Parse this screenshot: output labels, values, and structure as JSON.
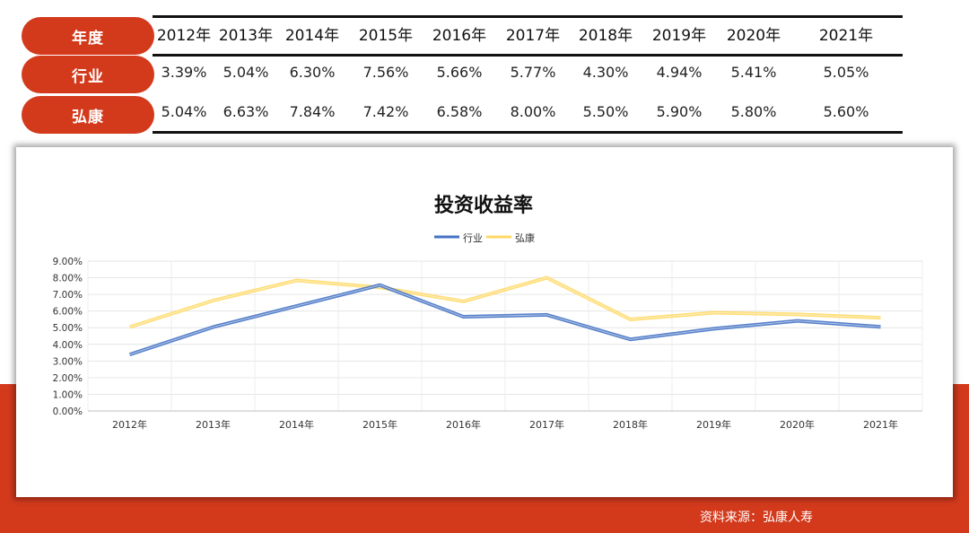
{
  "table": {
    "row_labels": [
      "年度",
      "行业",
      "弘康"
    ],
    "years": [
      "2012年",
      "2013年",
      "2014年",
      "2015年",
      "2016年",
      "2017年",
      "2018年",
      "2019年",
      "2020年",
      "2021年"
    ],
    "industry": [
      "3.39%",
      "5.04%",
      "6.30%",
      "7.56%",
      "5.66%",
      "5.77%",
      "4.30%",
      "4.94%",
      "5.41%",
      "5.05%"
    ],
    "hongkang": [
      "5.04%",
      "6.63%",
      "7.84%",
      "7.42%",
      "6.58%",
      "8.00%",
      "5.50%",
      "5.90%",
      "5.80%",
      "5.60%"
    ]
  },
  "chart_data": {
    "type": "line",
    "title": "投资收益率",
    "categories": [
      "2012年",
      "2013年",
      "2014年",
      "2015年",
      "2016年",
      "2017年",
      "2018年",
      "2019年",
      "2020年",
      "2021年"
    ],
    "series": [
      {
        "name": "行业",
        "values": [
          3.39,
          5.04,
          6.3,
          7.56,
          5.66,
          5.77,
          4.3,
          4.94,
          5.41,
          5.05
        ],
        "color": "#4472c4"
      },
      {
        "name": "弘康",
        "values": [
          5.04,
          6.63,
          7.84,
          7.42,
          6.58,
          8.0,
          5.5,
          5.9,
          5.8,
          5.6
        ],
        "color": "#ffd966"
      }
    ],
    "ylim": [
      0,
      9
    ],
    "yticks": [
      "0.00%",
      "1.00%",
      "2.00%",
      "3.00%",
      "4.00%",
      "5.00%",
      "6.00%",
      "7.00%",
      "8.00%",
      "9.00%"
    ],
    "grid": true,
    "legend_position": "top"
  },
  "footer": {
    "source": "资料来源：弘康人寿"
  }
}
